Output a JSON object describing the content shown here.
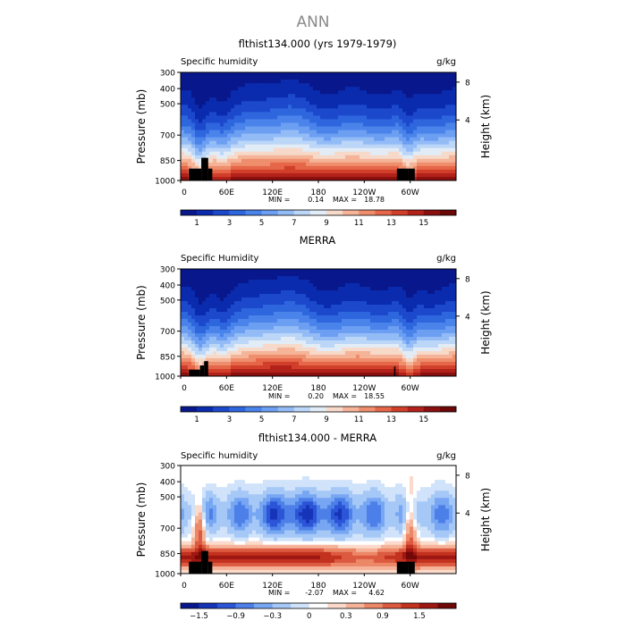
{
  "chart_data": {
    "main_title": "ANN",
    "panels": [
      {
        "type": "heatmap",
        "title": "flthist134.000 (yrs 1979-1979)",
        "left_label": "Specific humidity",
        "right_label": "g/kg",
        "ylabel": "Pressure (mb)",
        "y2label": "Height (km)",
        "x_ticks": [
          "0",
          "60E",
          "120E",
          "180",
          "120W",
          "60W"
        ],
        "y_ticks": [
          "300",
          "400",
          "500",
          "700",
          "850",
          "1000"
        ],
        "y2_ticks": [
          "8",
          "4"
        ],
        "min_label": "MIN =",
        "min_value": "0.14",
        "max_label": "MAX =",
        "max_value": "18.78",
        "colorbar_labels": [
          "1",
          "3",
          "5",
          "7",
          "9",
          "11",
          "13",
          "15"
        ],
        "palette": "sequential",
        "mountains": "model"
      },
      {
        "type": "heatmap",
        "title": "MERRA",
        "left_label": "Specific Humidity",
        "right_label": "g/kg",
        "ylabel": "Pressure (mb)",
        "y2label": "Height (km)",
        "x_ticks": [
          "0",
          "60E",
          "120E",
          "180",
          "120W",
          "60W"
        ],
        "y_ticks": [
          "300",
          "400",
          "500",
          "700",
          "850",
          "1000"
        ],
        "y2_ticks": [
          "8",
          "4"
        ],
        "min_label": "MIN =",
        "min_value": "0.20",
        "max_label": "MAX =",
        "max_value": "18.55",
        "colorbar_labels": [
          "1",
          "3",
          "5",
          "7",
          "9",
          "11",
          "13",
          "15"
        ],
        "palette": "sequential",
        "mountains": "merra"
      },
      {
        "type": "heatmap",
        "title": "flthist134.000 - MERRA",
        "left_label": "Specific humidity",
        "right_label": "g/kg",
        "ylabel": "Pressure (mb)",
        "y2label": "Height (km)",
        "x_ticks": [
          "0",
          "60E",
          "120E",
          "180",
          "120W",
          "60W"
        ],
        "y_ticks": [
          "300",
          "400",
          "500",
          "700",
          "850",
          "1000"
        ],
        "y2_ticks": [
          "8",
          "4"
        ],
        "min_label": "MIN =",
        "min_value": "-2.07",
        "max_label": "MAX =",
        "max_value": "4.62",
        "colorbar_labels": [
          "−1.5",
          "−0.9",
          "−0.3",
          "0",
          "0.3",
          "0.9",
          "1.5"
        ],
        "palette": "diverging",
        "mountains": "model"
      }
    ],
    "colors": {
      "sequential": [
        "#08188c",
        "#0a2bad",
        "#1c48cc",
        "#2e66de",
        "#4a83ea",
        "#6c9ef2",
        "#93bcf7",
        "#bcd6f8",
        "#e2ecf6",
        "#f7d9c9",
        "#f5b398",
        "#ef8e6c",
        "#e56648",
        "#d13f2b",
        "#b3221a",
        "#8a0f0f",
        "#6b0707"
      ],
      "diverging": [
        "#08188c",
        "#1634b8",
        "#2b55d6",
        "#4d7fe8",
        "#77a6f2",
        "#a6c8f7",
        "#d0e3fa",
        "#ffffff",
        "#fbdacb",
        "#f5b49a",
        "#ec8768",
        "#dc5a3f",
        "#c2321f",
        "#9e1711",
        "#700808"
      ]
    }
  }
}
